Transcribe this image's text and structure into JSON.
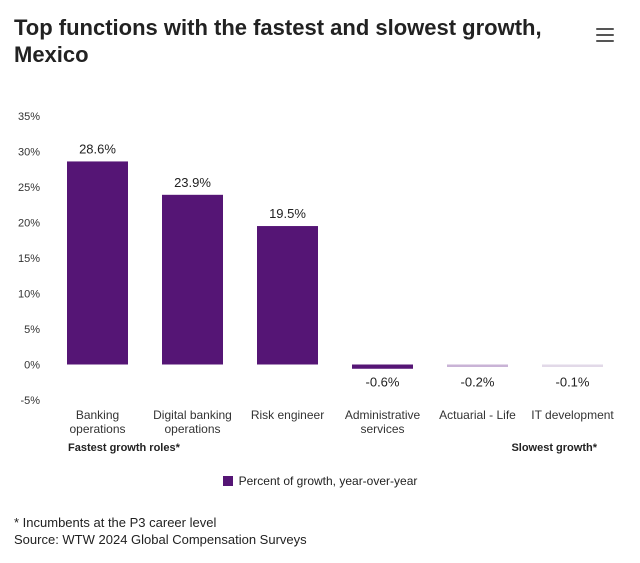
{
  "header": {
    "title": "Top functions with the fastest and slowest growth, Mexico",
    "menu_icon": "hamburger-menu-icon"
  },
  "chart_data": {
    "type": "bar",
    "title": "Top functions with the fastest and slowest growth, Mexico",
    "categories": [
      [
        "Banking",
        "operations"
      ],
      [
        "Digital banking",
        "operations"
      ],
      [
        "Risk engineer"
      ],
      [
        "Administrative",
        "services"
      ],
      [
        "Actuarial - Life"
      ],
      [
        "IT development"
      ]
    ],
    "series": [
      {
        "name": "Percent of growth, year-over-year",
        "values": [
          28.6,
          23.9,
          19.5,
          -0.6,
          -0.2,
          -0.1
        ]
      }
    ],
    "value_labels": [
      "28.6%",
      "23.9%",
      "19.5%",
      "-0.6%",
      "-0.2%",
      "-0.1%"
    ],
    "bar_colors": [
      "#551575",
      "#551575",
      "#551575",
      "#551575",
      "#c9b3d6",
      "#e2d9e8"
    ],
    "ylim": [
      -5,
      35
    ],
    "yticks": [
      35,
      30,
      25,
      20,
      15,
      10,
      5,
      0,
      -5
    ],
    "ytick_labels": [
      "35%",
      "30%",
      "25%",
      "20%",
      "15%",
      "10%",
      "5%",
      "0%",
      "-5%"
    ],
    "grid": false,
    "xlabel": "",
    "ylabel": "",
    "group_labels": {
      "left": "Fastest growth roles*",
      "right": "Slowest growth*"
    },
    "legend_position": "bottom-center"
  },
  "legend": {
    "label": "Percent of growth, year-over-year",
    "color": "#551575"
  },
  "footnotes": {
    "note": "* Incumbents at the P3 career level",
    "source": "Source: WTW 2024 Global Compensation Surveys"
  }
}
